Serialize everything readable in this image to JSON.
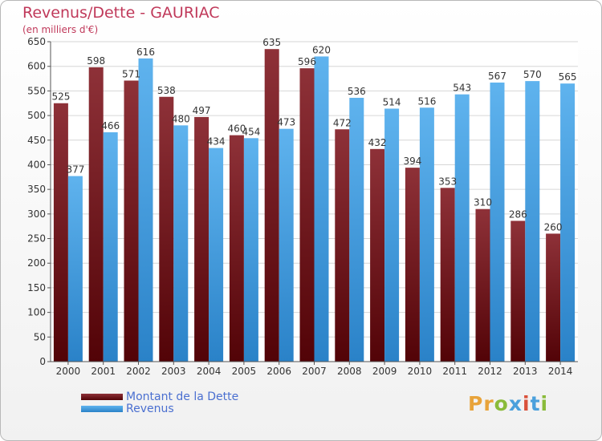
{
  "title": "Revenus/Dette - GAURIAC",
  "subtitle": "(en milliers d'€)",
  "logo": {
    "text": "Proxiti",
    "colors": [
      "#e8a33a",
      "#e8a33a",
      "#8abb3a",
      "#4aa0dc",
      "#d9503a",
      "#4aa0dc",
      "#8abb3a"
    ]
  },
  "chart_data": {
    "type": "bar",
    "categories": [
      "2000",
      "2001",
      "2002",
      "2003",
      "2004",
      "2005",
      "2006",
      "2007",
      "2008",
      "2009",
      "2010",
      "2011",
      "2012",
      "2013",
      "2014"
    ],
    "series": [
      {
        "name": "Montant de la Dette",
        "color": "#7a1c22",
        "values": [
          525,
          598,
          571,
          538,
          497,
          460,
          635,
          596,
          472,
          432,
          394,
          353,
          310,
          286,
          260
        ]
      },
      {
        "name": "Revenus",
        "color": "#3f9be0",
        "values": [
          377,
          466,
          616,
          480,
          434,
          454,
          473,
          620,
          536,
          514,
          516,
          543,
          567,
          570,
          565
        ]
      }
    ],
    "ylim": [
      0,
      650
    ],
    "yticks": [
      0,
      50,
      100,
      150,
      200,
      250,
      300,
      350,
      400,
      450,
      500,
      550,
      600,
      650
    ],
    "grid": true,
    "legend_position": "bottom-left"
  }
}
